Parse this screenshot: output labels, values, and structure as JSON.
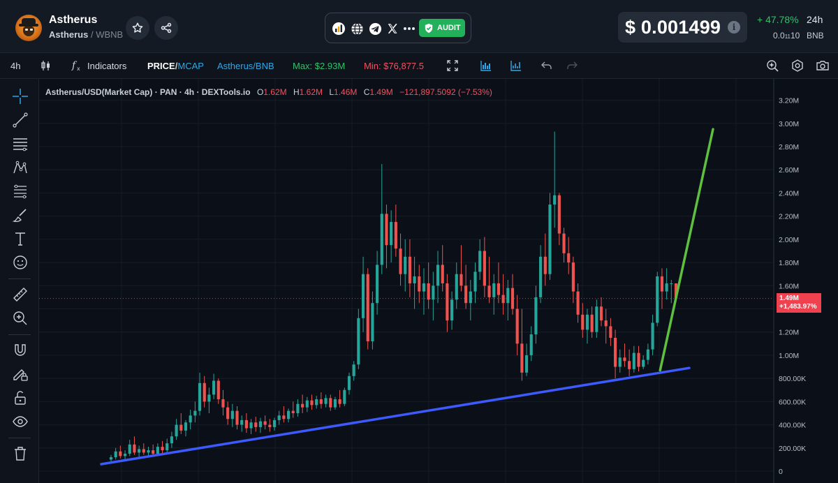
{
  "header": {
    "token_name": "Astherus",
    "token_symbol": "Astherus",
    "pair_suffix": "/ WBNB",
    "audit_label": "AUDIT",
    "price": "$ 0.001499",
    "change_24h": "+ 47.78%",
    "change_period": "24h",
    "bnb_price_prefix": "0.0",
    "bnb_price_subscript": "11",
    "bnb_price_rest": "10",
    "bnb_unit": "BNB",
    "link_icons": [
      "dextools-icon",
      "globe-icon",
      "telegram-icon",
      "x-icon",
      "more-icon"
    ]
  },
  "toolbar": {
    "interval": "4h",
    "indicators_label": "Indicators",
    "price_label": "PRICE",
    "mcap_label": "MCAP",
    "pair_label": "Astherus/BNB",
    "max_label": "Max: $2.93M",
    "min_label": "Min: $76,877.5"
  },
  "legend": {
    "title": "Astherus/USD(Market Cap) · PAN · 4h · DEXTools.io",
    "open_key": "O",
    "open": "1.62M",
    "high_key": "H",
    "high": "1.62M",
    "low_key": "L",
    "low": "1.46M",
    "close_key": "C",
    "close": "1.49M",
    "change": "−121,897.5092 (−7.53%)"
  },
  "price_tag": {
    "value": "1.49M",
    "percent": "+1,483.97%"
  },
  "colors": {
    "up": "#26a69a",
    "down": "#ef5350",
    "support_line": "#3d5afe",
    "projection_line": "#5fbf3f",
    "background": "#0b1018"
  },
  "chart_data": {
    "type": "candlestick",
    "title": "Astherus/USD(Market Cap) · PAN · 4h · DEXTools.io",
    "ylim": [
      0,
      3300000
    ],
    "y_ticks": [
      "0",
      "200.00K",
      "400.00K",
      "600.00K",
      "800.00K",
      "1.00M",
      "1.20M",
      "1.40M",
      "1.60M",
      "1.80M",
      "2.00M",
      "2.20M",
      "2.40M",
      "2.60M",
      "2.80M",
      "3.00M",
      "3.20M"
    ],
    "y_tick_values": [
      0,
      200000,
      400000,
      600000,
      800000,
      1000000,
      1200000,
      1400000,
      1600000,
      1800000,
      2000000,
      2200000,
      2400000,
      2600000,
      2800000,
      3000000,
      3200000
    ],
    "grid": true,
    "last_price": 1490000,
    "candles": [
      {
        "o": 0.1,
        "h": 0.14,
        "l": 0.08,
        "c": 0.12
      },
      {
        "o": 0.12,
        "h": 0.2,
        "l": 0.1,
        "c": 0.17
      },
      {
        "o": 0.17,
        "h": 0.22,
        "l": 0.11,
        "c": 0.13
      },
      {
        "o": 0.13,
        "h": 0.18,
        "l": 0.1,
        "c": 0.15
      },
      {
        "o": 0.15,
        "h": 0.27,
        "l": 0.13,
        "c": 0.23
      },
      {
        "o": 0.23,
        "h": 0.3,
        "l": 0.14,
        "c": 0.16
      },
      {
        "o": 0.16,
        "h": 0.22,
        "l": 0.12,
        "c": 0.19
      },
      {
        "o": 0.19,
        "h": 0.24,
        "l": 0.14,
        "c": 0.16
      },
      {
        "o": 0.16,
        "h": 0.21,
        "l": 0.12,
        "c": 0.18
      },
      {
        "o": 0.18,
        "h": 0.23,
        "l": 0.13,
        "c": 0.15
      },
      {
        "o": 0.15,
        "h": 0.24,
        "l": 0.13,
        "c": 0.21
      },
      {
        "o": 0.21,
        "h": 0.26,
        "l": 0.15,
        "c": 0.18
      },
      {
        "o": 0.18,
        "h": 0.28,
        "l": 0.16,
        "c": 0.24
      },
      {
        "o": 0.24,
        "h": 0.34,
        "l": 0.2,
        "c": 0.3
      },
      {
        "o": 0.3,
        "h": 0.45,
        "l": 0.27,
        "c": 0.4
      },
      {
        "o": 0.4,
        "h": 0.5,
        "l": 0.32,
        "c": 0.35
      },
      {
        "o": 0.35,
        "h": 0.44,
        "l": 0.3,
        "c": 0.42
      },
      {
        "o": 0.42,
        "h": 0.53,
        "l": 0.36,
        "c": 0.48
      },
      {
        "o": 0.48,
        "h": 0.6,
        "l": 0.42,
        "c": 0.52
      },
      {
        "o": 0.52,
        "h": 0.85,
        "l": 0.48,
        "c": 0.76
      },
      {
        "o": 0.76,
        "h": 0.82,
        "l": 0.55,
        "c": 0.6
      },
      {
        "o": 0.6,
        "h": 0.72,
        "l": 0.5,
        "c": 0.66
      },
      {
        "o": 0.66,
        "h": 0.84,
        "l": 0.62,
        "c": 0.78
      },
      {
        "o": 0.78,
        "h": 0.8,
        "l": 0.58,
        "c": 0.62
      },
      {
        "o": 0.62,
        "h": 0.7,
        "l": 0.48,
        "c": 0.55
      },
      {
        "o": 0.55,
        "h": 0.6,
        "l": 0.4,
        "c": 0.45
      },
      {
        "o": 0.45,
        "h": 0.58,
        "l": 0.38,
        "c": 0.52
      },
      {
        "o": 0.52,
        "h": 0.56,
        "l": 0.36,
        "c": 0.4
      },
      {
        "o": 0.4,
        "h": 0.48,
        "l": 0.34,
        "c": 0.44
      },
      {
        "o": 0.44,
        "h": 0.5,
        "l": 0.33,
        "c": 0.37
      },
      {
        "o": 0.37,
        "h": 0.45,
        "l": 0.32,
        "c": 0.42
      },
      {
        "o": 0.42,
        "h": 0.47,
        "l": 0.34,
        "c": 0.38
      },
      {
        "o": 0.38,
        "h": 0.46,
        "l": 0.33,
        "c": 0.43
      },
      {
        "o": 0.43,
        "h": 0.48,
        "l": 0.36,
        "c": 0.4
      },
      {
        "o": 0.4,
        "h": 0.45,
        "l": 0.34,
        "c": 0.38
      },
      {
        "o": 0.38,
        "h": 0.46,
        "l": 0.35,
        "c": 0.44
      },
      {
        "o": 0.44,
        "h": 0.52,
        "l": 0.4,
        "c": 0.48
      },
      {
        "o": 0.48,
        "h": 0.56,
        "l": 0.42,
        "c": 0.45
      },
      {
        "o": 0.45,
        "h": 0.54,
        "l": 0.42,
        "c": 0.52
      },
      {
        "o": 0.52,
        "h": 0.6,
        "l": 0.46,
        "c": 0.5
      },
      {
        "o": 0.5,
        "h": 0.62,
        "l": 0.47,
        "c": 0.58
      },
      {
        "o": 0.58,
        "h": 0.66,
        "l": 0.5,
        "c": 0.55
      },
      {
        "o": 0.55,
        "h": 0.64,
        "l": 0.51,
        "c": 0.61
      },
      {
        "o": 0.61,
        "h": 0.66,
        "l": 0.53,
        "c": 0.57
      },
      {
        "o": 0.57,
        "h": 0.65,
        "l": 0.54,
        "c": 0.62
      },
      {
        "o": 0.62,
        "h": 0.68,
        "l": 0.54,
        "c": 0.58
      },
      {
        "o": 0.58,
        "h": 0.66,
        "l": 0.55,
        "c": 0.63
      },
      {
        "o": 0.63,
        "h": 0.66,
        "l": 0.52,
        "c": 0.55
      },
      {
        "o": 0.55,
        "h": 0.64,
        "l": 0.53,
        "c": 0.62
      },
      {
        "o": 0.62,
        "h": 0.7,
        "l": 0.55,
        "c": 0.58
      },
      {
        "o": 0.58,
        "h": 0.72,
        "l": 0.56,
        "c": 0.7
      },
      {
        "o": 0.7,
        "h": 0.85,
        "l": 0.66,
        "c": 0.82
      },
      {
        "o": 0.82,
        "h": 0.95,
        "l": 0.78,
        "c": 0.92
      },
      {
        "o": 0.92,
        "h": 1.4,
        "l": 0.88,
        "c": 1.32
      },
      {
        "o": 1.32,
        "h": 1.85,
        "l": 1.2,
        "c": 1.7
      },
      {
        "o": 1.7,
        "h": 1.75,
        "l": 1.05,
        "c": 1.12
      },
      {
        "o": 1.12,
        "h": 1.55,
        "l": 1.05,
        "c": 1.45
      },
      {
        "o": 1.45,
        "h": 1.9,
        "l": 1.35,
        "c": 1.78
      },
      {
        "o": 1.78,
        "h": 2.65,
        "l": 1.7,
        "c": 2.22
      },
      {
        "o": 2.22,
        "h": 2.3,
        "l": 1.75,
        "c": 1.95
      },
      {
        "o": 1.95,
        "h": 2.25,
        "l": 1.8,
        "c": 2.15
      },
      {
        "o": 2.15,
        "h": 2.3,
        "l": 1.85,
        "c": 1.92
      },
      {
        "o": 1.92,
        "h": 2.05,
        "l": 1.6,
        "c": 1.7
      },
      {
        "o": 1.7,
        "h": 2.0,
        "l": 1.55,
        "c": 1.85
      },
      {
        "o": 1.85,
        "h": 2.0,
        "l": 1.5,
        "c": 1.62
      },
      {
        "o": 1.62,
        "h": 1.85,
        "l": 1.4,
        "c": 1.68
      },
      {
        "o": 1.68,
        "h": 1.78,
        "l": 1.45,
        "c": 1.55
      },
      {
        "o": 1.55,
        "h": 1.75,
        "l": 1.35,
        "c": 1.62
      },
      {
        "o": 1.62,
        "h": 1.8,
        "l": 1.4,
        "c": 1.48
      },
      {
        "o": 1.48,
        "h": 1.72,
        "l": 1.3,
        "c": 1.6
      },
      {
        "o": 1.6,
        "h": 1.9,
        "l": 1.45,
        "c": 1.78
      },
      {
        "o": 1.78,
        "h": 1.95,
        "l": 1.55,
        "c": 1.62
      },
      {
        "o": 1.62,
        "h": 1.7,
        "l": 1.2,
        "c": 1.3
      },
      {
        "o": 1.3,
        "h": 1.55,
        "l": 1.22,
        "c": 1.48
      },
      {
        "o": 1.48,
        "h": 1.8,
        "l": 1.4,
        "c": 1.7
      },
      {
        "o": 1.7,
        "h": 1.95,
        "l": 1.55,
        "c": 1.6
      },
      {
        "o": 1.6,
        "h": 1.78,
        "l": 1.4,
        "c": 1.45
      },
      {
        "o": 1.45,
        "h": 1.65,
        "l": 1.3,
        "c": 1.55
      },
      {
        "o": 1.55,
        "h": 1.8,
        "l": 1.45,
        "c": 1.72
      },
      {
        "o": 1.72,
        "h": 2.0,
        "l": 1.65,
        "c": 1.9
      },
      {
        "o": 1.9,
        "h": 2.02,
        "l": 1.5,
        "c": 1.6
      },
      {
        "o": 1.6,
        "h": 1.85,
        "l": 1.45,
        "c": 1.5
      },
      {
        "o": 1.5,
        "h": 1.7,
        "l": 1.35,
        "c": 1.62
      },
      {
        "o": 1.62,
        "h": 1.8,
        "l": 1.45,
        "c": 1.52
      },
      {
        "o": 1.52,
        "h": 1.7,
        "l": 1.35,
        "c": 1.45
      },
      {
        "o": 1.45,
        "h": 1.65,
        "l": 1.3,
        "c": 1.58
      },
      {
        "o": 1.58,
        "h": 1.7,
        "l": 1.35,
        "c": 1.4
      },
      {
        "o": 1.4,
        "h": 1.52,
        "l": 1.0,
        "c": 1.1
      },
      {
        "o": 1.1,
        "h": 1.4,
        "l": 0.78,
        "c": 0.85
      },
      {
        "o": 0.85,
        "h": 1.1,
        "l": 0.82,
        "c": 1.0
      },
      {
        "o": 1.0,
        "h": 1.25,
        "l": 0.95,
        "c": 1.18
      },
      {
        "o": 1.18,
        "h": 1.6,
        "l": 1.1,
        "c": 1.5
      },
      {
        "o": 1.5,
        "h": 1.95,
        "l": 1.45,
        "c": 1.85
      },
      {
        "o": 1.85,
        "h": 2.05,
        "l": 1.6,
        "c": 1.7
      },
      {
        "o": 1.7,
        "h": 2.4,
        "l": 1.65,
        "c": 2.3
      },
      {
        "o": 2.3,
        "h": 2.93,
        "l": 2.1,
        "c": 2.38
      },
      {
        "o": 2.38,
        "h": 2.4,
        "l": 1.95,
        "c": 2.05
      },
      {
        "o": 2.05,
        "h": 2.1,
        "l": 1.8,
        "c": 1.88
      },
      {
        "o": 1.88,
        "h": 2.02,
        "l": 1.7,
        "c": 1.8
      },
      {
        "o": 1.8,
        "h": 1.85,
        "l": 1.45,
        "c": 1.55
      },
      {
        "o": 1.55,
        "h": 1.62,
        "l": 1.28,
        "c": 1.35
      },
      {
        "o": 1.35,
        "h": 1.45,
        "l": 1.15,
        "c": 1.22
      },
      {
        "o": 1.22,
        "h": 1.4,
        "l": 1.1,
        "c": 1.35
      },
      {
        "o": 1.35,
        "h": 1.42,
        "l": 1.15,
        "c": 1.2
      },
      {
        "o": 1.2,
        "h": 1.48,
        "l": 1.15,
        "c": 1.42
      },
      {
        "o": 1.42,
        "h": 1.5,
        "l": 1.25,
        "c": 1.3
      },
      {
        "o": 1.3,
        "h": 1.4,
        "l": 1.1,
        "c": 1.25
      },
      {
        "o": 1.25,
        "h": 1.32,
        "l": 1.08,
        "c": 1.15
      },
      {
        "o": 1.15,
        "h": 1.22,
        "l": 0.8,
        "c": 0.9
      },
      {
        "o": 0.9,
        "h": 1.05,
        "l": 0.85,
        "c": 0.98
      },
      {
        "o": 0.98,
        "h": 1.1,
        "l": 0.9,
        "c": 0.95
      },
      {
        "o": 0.95,
        "h": 1.05,
        "l": 0.82,
        "c": 0.88
      },
      {
        "o": 0.88,
        "h": 1.08,
        "l": 0.85,
        "c": 1.02
      },
      {
        "o": 1.02,
        "h": 1.08,
        "l": 0.86,
        "c": 0.9
      },
      {
        "o": 0.9,
        "h": 1.0,
        "l": 0.88,
        "c": 0.96
      },
      {
        "o": 0.96,
        "h": 1.1,
        "l": 0.92,
        "c": 1.05
      },
      {
        "o": 1.05,
        "h": 1.35,
        "l": 1.0,
        "c": 1.28
      },
      {
        "o": 1.28,
        "h": 1.72,
        "l": 1.25,
        "c": 1.68
      },
      {
        "o": 1.68,
        "h": 1.75,
        "l": 1.4,
        "c": 1.55
      },
      {
        "o": 1.55,
        "h": 1.75,
        "l": 1.48,
        "c": 1.62
      },
      {
        "o": 1.62,
        "h": 1.65,
        "l": 1.45,
        "c": 1.62
      },
      {
        "o": 1.62,
        "h": 1.62,
        "l": 1.46,
        "c": 1.49
      }
    ],
    "annotations": [
      {
        "type": "trendline",
        "name": "support",
        "color": "#3d5afe",
        "from_index": 0,
        "from_value": 60000,
        "to_index": 122,
        "to_value": 890000
      },
      {
        "type": "trendline",
        "name": "projection",
        "color": "#5fbf3f",
        "from_index": 117,
        "from_value": 870000,
        "to_index": 122,
        "to_value": 2950000
      }
    ]
  }
}
